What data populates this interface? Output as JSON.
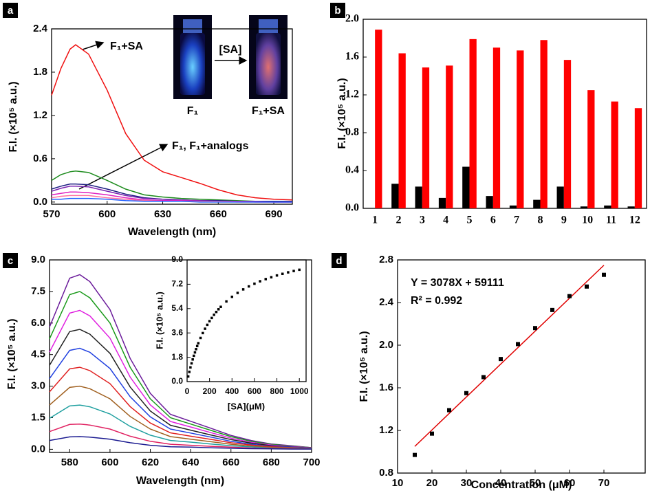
{
  "chart_data": [
    {
      "type": "line",
      "panel": "a",
      "xlabel": "Wavelength (nm)",
      "ylabel": "F.I. (×10⁵ a.u.)",
      "x": [
        570,
        575,
        580,
        583,
        590,
        600,
        610,
        620,
        630,
        640,
        650,
        660,
        670,
        680,
        690,
        700
      ],
      "xlim": [
        570,
        700
      ],
      "xticks": [
        570,
        600,
        630,
        660,
        690
      ],
      "ylim": [
        -0.03,
        2.4
      ],
      "yticks": [
        {
          "value": 0,
          "label": "0.0"
        },
        0.6,
        1.2,
        1.8,
        2.4
      ],
      "series": [
        {
          "color": "#f01010",
          "values": [
            1.48,
            1.85,
            2.12,
            2.18,
            2.05,
            1.55,
            0.95,
            0.58,
            0.42,
            0.34,
            0.26,
            0.17,
            0.1,
            0.06,
            0.04,
            0.03
          ]
        },
        {
          "color": "#1a8a1a",
          "values": [
            0.3,
            0.38,
            0.42,
            0.43,
            0.41,
            0.3,
            0.18,
            0.1,
            0.07,
            0.05,
            0.04,
            0.03,
            0.02,
            0.01,
            0.01,
            0.01
          ]
        },
        {
          "color": "#1a1a80",
          "values": [
            0.18,
            0.22,
            0.25,
            0.25,
            0.24,
            0.18,
            0.11,
            0.06,
            0.04,
            0.03,
            0.02,
            0.02,
            0.01,
            0.01,
            0.01,
            0.01
          ]
        },
        {
          "color": "#7a20b0",
          "values": [
            0.15,
            0.19,
            0.22,
            0.22,
            0.21,
            0.15,
            0.09,
            0.05,
            0.04,
            0.03,
            0.02,
            0.01,
            0.01,
            0.01,
            0,
            0
          ]
        },
        {
          "color": "#e020c0",
          "values": [
            0.1,
            0.12,
            0.14,
            0.14,
            0.13,
            0.1,
            0.06,
            0.03,
            0.02,
            0.02,
            0.01,
            0.01,
            0.01,
            0,
            0,
            0
          ]
        },
        {
          "color": "#ff70a0",
          "values": [
            0.06,
            0.08,
            0.09,
            0.09,
            0.09,
            0.06,
            0.04,
            0.02,
            0.01,
            0.01,
            0.01,
            0.01,
            0,
            0,
            0,
            0
          ]
        },
        {
          "color": "#2060ff",
          "values": [
            0.04,
            0.04,
            0.05,
            0.05,
            0.05,
            0.04,
            0.02,
            0.01,
            0.01,
            0.01,
            0,
            0,
            0,
            0,
            0,
            0
          ]
        }
      ],
      "annotations": [
        "F₁+SA",
        "F₁, F₁+analogs"
      ],
      "inset_labels": [
        "[SA]",
        "F₁",
        "F₁+SA"
      ]
    },
    {
      "type": "bar",
      "panel": "b",
      "ylabel": "F.I. (×10⁵ a.u.)",
      "categories": [
        "1",
        "2",
        "3",
        "4",
        "5",
        "6",
        "7",
        "8",
        "9",
        "10",
        "11",
        "12"
      ],
      "ylim": [
        0,
        2.0
      ],
      "yticks": [
        {
          "value": 0,
          "label": "0.0"
        },
        0.4,
        0.8,
        1.2,
        1.6,
        {
          "value": 2,
          "label": "2.0"
        }
      ],
      "series": [
        {
          "color": "#000000",
          "values": [
            0,
            0.26,
            0.23,
            0.11,
            0.44,
            0.13,
            0.03,
            0.09,
            0.23,
            0.02,
            0.03,
            0.02
          ]
        },
        {
          "color": "#ff0000",
          "values": [
            1.89,
            1.64,
            1.49,
            1.51,
            1.79,
            1.7,
            1.67,
            1.78,
            1.57,
            1.25,
            1.13,
            1.06
          ]
        }
      ]
    },
    {
      "type": "line",
      "panel": "c",
      "xlabel": "Wavelength (nm)",
      "ylabel": "F.I. (×10⁵ a.u.)",
      "x": [
        570,
        580,
        585,
        590,
        600,
        610,
        620,
        630,
        640,
        650,
        660,
        670,
        680,
        690,
        700
      ],
      "xlim": [
        570,
        700
      ],
      "xticks": [
        580,
        600,
        620,
        640,
        660,
        680,
        700
      ],
      "ylim": [
        -0.15,
        9.0
      ],
      "yticks": [
        {
          "value": 0,
          "label": "0.0"
        },
        1.5,
        {
          "value": 3,
          "label": "3.0"
        },
        4.5,
        {
          "value": 6,
          "label": "6.0"
        },
        7.5,
        {
          "value": 9,
          "label": "9.0"
        }
      ],
      "series": [
        {
          "color": "#6a1a9a",
          "values": [
            5.81,
            8.13,
            8.3,
            7.97,
            6.64,
            4.32,
            2.66,
            1.66,
            1.33,
            1.0,
            0.66,
            0.42,
            0.25,
            0.17,
            0.08
          ]
        },
        {
          "color": "#1a9a1a",
          "values": [
            5.25,
            7.35,
            7.5,
            7.2,
            6.0,
            3.9,
            2.4,
            1.5,
            1.2,
            0.9,
            0.6,
            0.38,
            0.23,
            0.15,
            0.08
          ]
        },
        {
          "color": "#e020e0",
          "values": [
            4.62,
            6.47,
            6.6,
            6.34,
            5.28,
            3.43,
            2.11,
            1.32,
            1.06,
            0.79,
            0.53,
            0.33,
            0.2,
            0.13,
            0.07
          ]
        },
        {
          "color": "#202020",
          "values": [
            3.99,
            5.59,
            5.7,
            5.47,
            4.56,
            2.96,
            1.82,
            1.14,
            0.91,
            0.68,
            0.46,
            0.29,
            0.17,
            0.11,
            0.06
          ]
        },
        {
          "color": "#2040e0",
          "values": [
            3.36,
            4.7,
            4.8,
            4.61,
            3.84,
            2.5,
            1.54,
            0.96,
            0.77,
            0.58,
            0.38,
            0.24,
            0.14,
            0.1,
            0.05
          ]
        },
        {
          "color": "#e02020",
          "values": [
            2.73,
            3.82,
            3.9,
            3.74,
            3.12,
            2.03,
            1.25,
            0.78,
            0.62,
            0.47,
            0.31,
            0.2,
            0.12,
            0.08,
            0.04
          ]
        },
        {
          "color": "#a06020",
          "values": [
            2.1,
            2.94,
            3.0,
            2.88,
            2.4,
            1.56,
            0.96,
            0.6,
            0.48,
            0.36,
            0.24,
            0.15,
            0.09,
            0.06,
            0.03
          ]
        },
        {
          "color": "#20a0a0",
          "values": [
            1.47,
            2.06,
            2.1,
            2.02,
            1.68,
            1.09,
            0.67,
            0.42,
            0.34,
            0.25,
            0.17,
            0.11,
            0.06,
            0.04,
            0.02
          ]
        },
        {
          "color": "#e02060",
          "values": [
            0.84,
            1.18,
            1.2,
            1.15,
            0.96,
            0.62,
            0.38,
            0.24,
            0.19,
            0.14,
            0.1,
            0.06,
            0.04,
            0.02,
            0.01
          ]
        },
        {
          "color": "#1a1a90",
          "values": [
            0.42,
            0.59,
            0.6,
            0.58,
            0.48,
            0.31,
            0.19,
            0.12,
            0.1,
            0.07,
            0.05,
            0.03,
            0.02,
            0.01,
            0.01
          ]
        }
      ]
    },
    {
      "type": "scatter",
      "xlabel": "[SA](μM)",
      "ylabel": "F.I. (×10⁵ a.u.)",
      "x": [
        10,
        20,
        30,
        40,
        50,
        60,
        70,
        80,
        90,
        100,
        120,
        140,
        160,
        180,
        200,
        220,
        240,
        260,
        280,
        300,
        350,
        400,
        450,
        500,
        550,
        600,
        650,
        700,
        750,
        800,
        850,
        900,
        950,
        1000
      ],
      "values": [
        0.38,
        0.72,
        1.05,
        1.35,
        1.64,
        1.91,
        2.16,
        2.4,
        2.63,
        2.84,
        3.23,
        3.59,
        3.91,
        4.2,
        4.47,
        4.71,
        4.94,
        5.15,
        5.35,
        5.53,
        5.93,
        6.27,
        6.56,
        6.82,
        7.04,
        7.24,
        7.42,
        7.58,
        7.72,
        7.85,
        7.97,
        8.08,
        8.18,
        8.27
      ],
      "color": "#000000",
      "xlim": [
        0,
        1060
      ],
      "xticks": [
        0,
        200,
        400,
        600,
        800,
        1000
      ],
      "ylim": [
        0,
        9.0
      ],
      "yticks": [
        {
          "value": 0,
          "label": "0.0"
        },
        1.8,
        3.6,
        5.4,
        7.2,
        {
          "value": 9,
          "label": "9.0"
        }
      ]
    },
    {
      "type": "scatter",
      "panel": "d",
      "xlabel": "Concentration (μM)",
      "ylabel": "F.I. (×10⁵ a.u.)",
      "x": [
        15,
        20,
        25,
        30,
        35,
        40,
        45,
        50,
        55,
        60,
        65,
        70
      ],
      "values": [
        0.97,
        1.17,
        1.39,
        1.55,
        1.7,
        1.87,
        2.01,
        2.16,
        2.33,
        2.46,
        2.55,
        2.66
      ],
      "color": "#000000",
      "fit": {
        "color": "#e00000",
        "x": [
          15,
          70
        ],
        "values": [
          1.05,
          2.75
        ]
      },
      "xlim": [
        10,
        82
      ],
      "xticks": [
        10,
        20,
        30,
        40,
        50,
        60,
        70
      ],
      "ylim": [
        0.8,
        2.8
      ],
      "yticks": [
        0.8,
        1.2,
        1.6,
        {
          "value": 2,
          "label": "2.0"
        },
        2.4,
        2.8
      ],
      "annotations": [
        "Y = 3078X + 59111",
        "R² = 0.992"
      ]
    }
  ]
}
